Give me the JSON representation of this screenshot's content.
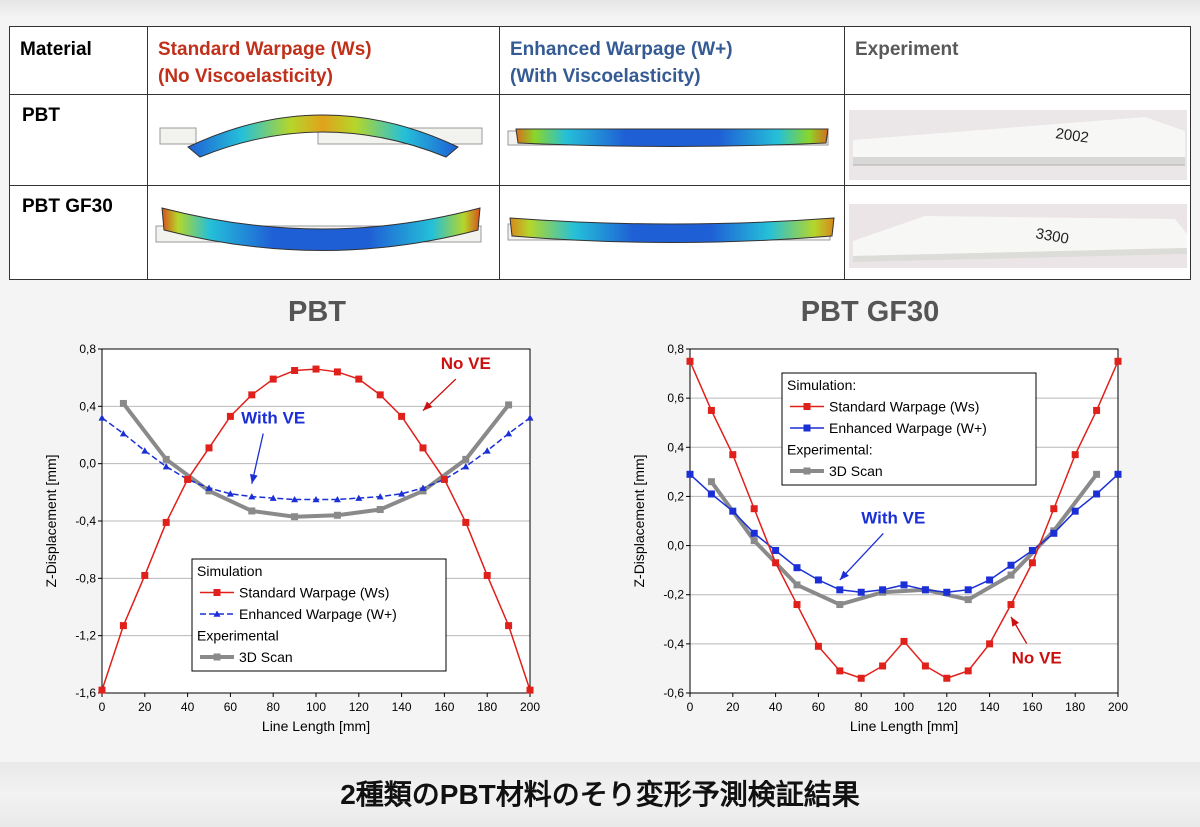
{
  "table": {
    "headers": {
      "material": "Material",
      "standard_line1": "Standard Warpage (Ws)",
      "standard_line2": "(No Viscoelasticity)",
      "enhanced_line1": "Enhanced Warpage (W+)",
      "enhanced_line2": "(With Viscoelasticity)",
      "experiment": "Experiment"
    },
    "rows": [
      {
        "material": "PBT",
        "sample_label": "2002"
      },
      {
        "material": "PBT GF30",
        "sample_label": "3300"
      }
    ]
  },
  "colors": {
    "standard": "#e0201b",
    "enhanced": "#1b2fd6",
    "scan": "#8a8a8a",
    "header_red": "#c0311b",
    "header_blue": "#355b94",
    "annotation_red": "#cc1010",
    "annotation_blue": "#1b2fd6"
  },
  "caption": "2種類のPBT材料のそり変形予測検証結果",
  "chart_data": [
    {
      "type": "line",
      "title": "PBT",
      "xlabel": "Line Length [mm]",
      "ylabel": "Z-Displacement [mm]",
      "xlim": [
        0,
        200
      ],
      "ylim": [
        -1.6,
        0.8
      ],
      "xticks": [
        0,
        20,
        40,
        60,
        80,
        100,
        120,
        140,
        160,
        180,
        200
      ],
      "yticks": [
        -1.6,
        -1.2,
        -0.8,
        -0.4,
        0.0,
        0.4,
        0.8
      ],
      "ytick_labels": [
        "-1,6",
        "-1,2",
        "-0,8",
        "-0,4",
        "0,0",
        "0,4",
        "0,8"
      ],
      "grid": true,
      "legend": {
        "placement": "bottom-center",
        "group1": "Simulation",
        "group2": "Experimental"
      },
      "series": [
        {
          "name": "Standard Warpage (Ws)",
          "marker": "square",
          "x": [
            0,
            10,
            20,
            30,
            40,
            50,
            60,
            70,
            80,
            90,
            100,
            110,
            120,
            130,
            140,
            150,
            160,
            170,
            180,
            190,
            200
          ],
          "y": [
            -1.58,
            -1.13,
            -0.78,
            -0.41,
            -0.11,
            0.11,
            0.33,
            0.48,
            0.59,
            0.65,
            0.66,
            0.64,
            0.59,
            0.48,
            0.33,
            0.11,
            -0.11,
            -0.41,
            -0.78,
            -1.13,
            -1.58
          ]
        },
        {
          "name": "Enhanced Warpage (W+)",
          "marker": "triangle",
          "x": [
            0,
            10,
            20,
            30,
            40,
            50,
            60,
            70,
            80,
            90,
            100,
            110,
            120,
            130,
            140,
            150,
            160,
            170,
            180,
            190,
            200
          ],
          "y": [
            0.32,
            0.21,
            0.09,
            -0.02,
            -0.11,
            -0.17,
            -0.21,
            -0.23,
            -0.24,
            -0.25,
            -0.25,
            -0.25,
            -0.24,
            -0.23,
            -0.21,
            -0.17,
            -0.11,
            -0.02,
            0.09,
            0.21,
            0.32
          ]
        },
        {
          "name": "3D Scan",
          "marker": "square",
          "x": [
            10,
            30,
            50,
            70,
            90,
            110,
            130,
            150,
            170,
            190
          ],
          "y": [
            0.42,
            0.03,
            -0.19,
            -0.33,
            -0.37,
            -0.36,
            -0.32,
            -0.19,
            0.03,
            0.41
          ]
        }
      ],
      "annotations": [
        {
          "text": "No VE",
          "color": "red",
          "at": [
            170,
            0.66
          ],
          "arrow_to": [
            150,
            0.37
          ]
        },
        {
          "text": "With VE",
          "color": "blue",
          "at": [
            80,
            0.28
          ],
          "arrow_to": [
            70,
            -0.14
          ]
        }
      ]
    },
    {
      "type": "line",
      "title": "PBT GF30",
      "xlabel": "Line Length [mm]",
      "ylabel": "Z-Displacement [mm]",
      "xlim": [
        0,
        200
      ],
      "ylim": [
        -0.6,
        0.8
      ],
      "xticks": [
        0,
        20,
        40,
        60,
        80,
        100,
        120,
        140,
        160,
        180,
        200
      ],
      "yticks": [
        -0.6,
        -0.4,
        -0.2,
        0.0,
        0.2,
        0.4,
        0.6,
        0.8
      ],
      "ytick_labels": [
        "-0,6",
        "-0,4",
        "-0,2",
        "0,0",
        "0,2",
        "0,4",
        "0,6",
        "0,8"
      ],
      "grid": true,
      "legend": {
        "placement": "top-left",
        "group1": "Simulation:",
        "group2": "Experimental:"
      },
      "series": [
        {
          "name": "Standard Warpage (Ws)",
          "marker": "square",
          "x": [
            0,
            10,
            20,
            30,
            40,
            50,
            60,
            70,
            80,
            90,
            100,
            110,
            120,
            130,
            140,
            150,
            160,
            170,
            180,
            190,
            200
          ],
          "y": [
            0.75,
            0.55,
            0.37,
            0.15,
            -0.07,
            -0.24,
            -0.41,
            -0.51,
            -0.54,
            -0.49,
            -0.39,
            -0.49,
            -0.54,
            -0.51,
            -0.4,
            -0.24,
            -0.07,
            0.15,
            0.37,
            0.55,
            0.75
          ]
        },
        {
          "name": "Enhanced Warpage (W+)",
          "marker": "square",
          "x": [
            0,
            10,
            20,
            30,
            40,
            50,
            60,
            70,
            80,
            90,
            100,
            110,
            120,
            130,
            140,
            150,
            160,
            170,
            180,
            190,
            200
          ],
          "y": [
            0.29,
            0.21,
            0.14,
            0.05,
            -0.02,
            -0.09,
            -0.14,
            -0.18,
            -0.19,
            -0.18,
            -0.16,
            -0.18,
            -0.19,
            -0.18,
            -0.14,
            -0.08,
            -0.02,
            0.05,
            0.14,
            0.21,
            0.29
          ]
        },
        {
          "name": "3D Scan",
          "marker": "square",
          "x": [
            10,
            30,
            50,
            70,
            90,
            110,
            130,
            150,
            170,
            190
          ],
          "y": [
            0.26,
            0.02,
            -0.16,
            -0.24,
            -0.19,
            -0.18,
            -0.22,
            -0.12,
            0.06,
            0.29
          ]
        }
      ],
      "annotations": [
        {
          "text": "With VE",
          "color": "blue",
          "at": [
            95,
            0.09
          ],
          "arrow_to": [
            70,
            -0.14
          ]
        },
        {
          "text": "No VE",
          "color": "red",
          "at": [
            162,
            -0.48
          ],
          "arrow_to": [
            150,
            -0.29
          ]
        }
      ]
    }
  ]
}
